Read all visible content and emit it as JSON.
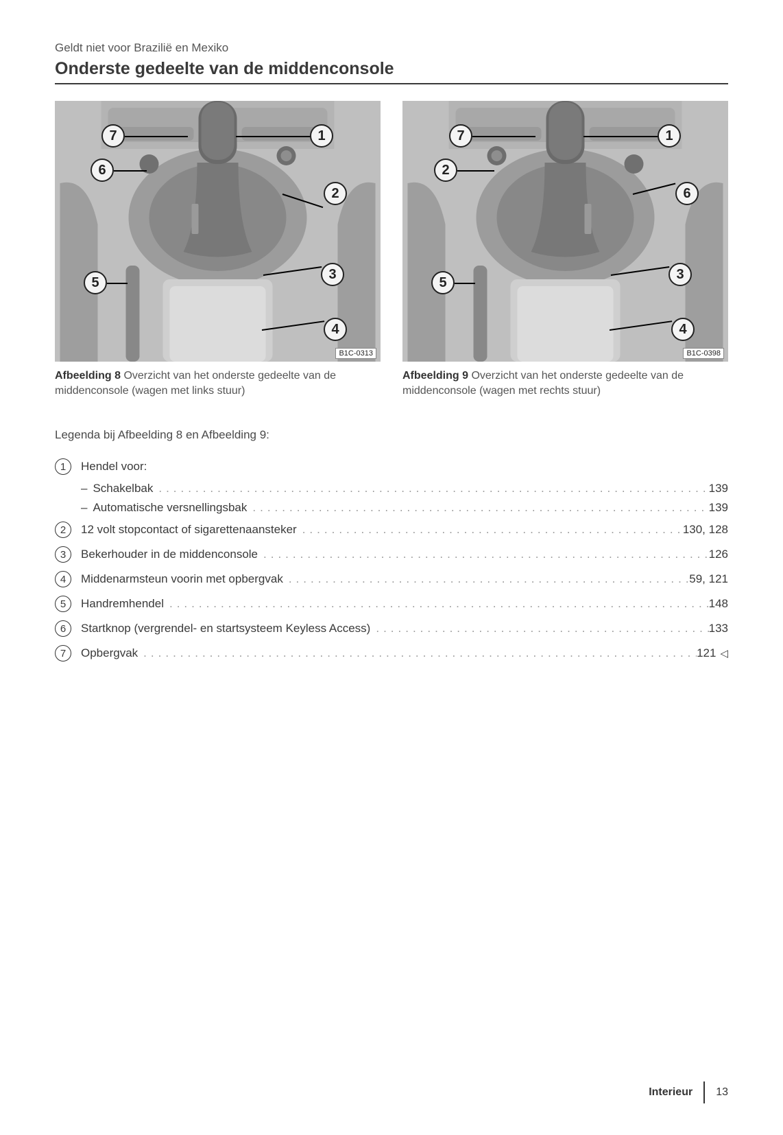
{
  "note": "Geldt niet voor Brazilië en Mexiko",
  "section_title": "Onderste gedeelte van de middenconsole",
  "figures": {
    "left": {
      "code": "B1C-0313",
      "caption_bold": "Afbeelding 8",
      "caption_rest": " Overzicht van het onderste gedeelte van de middenconsole (wagen met links stuur)",
      "callouts": [
        "7",
        "6",
        "5",
        "1",
        "2",
        "3",
        "4"
      ]
    },
    "right": {
      "code": "B1C-0398",
      "caption_bold": "Afbeelding 9",
      "caption_rest": " Overzicht van het onderste gedeelte van de middenconsole (wagen met rechts stuur)",
      "callouts": [
        "7",
        "2",
        "5",
        "1",
        "6",
        "3",
        "4"
      ]
    }
  },
  "legend_intro": "Legenda bij Afbeelding 8 en Afbeelding 9:",
  "legend": [
    {
      "num": "1",
      "text": "Hendel voor:",
      "page": "",
      "sub": [
        {
          "text": "Schakelbak",
          "page": "139"
        },
        {
          "text": "Automatische versnellingsbak",
          "page": "139"
        }
      ]
    },
    {
      "num": "2",
      "text": "12 volt stopcontact of sigarettenaansteker",
      "page": "130, 128"
    },
    {
      "num": "3",
      "text": "Bekerhouder in de middenconsole",
      "page": "126"
    },
    {
      "num": "4",
      "text": "Middenarmsteun voorin met opbergvak",
      "page": "59, 121"
    },
    {
      "num": "5",
      "text": "Handremhendel",
      "page": "148"
    },
    {
      "num": "6",
      "text": "Startknop (vergrendel- en startsysteem Keyless Access)",
      "page": "133"
    },
    {
      "num": "7",
      "text": "Opbergvak",
      "page": "121",
      "arrow": true
    }
  ],
  "footer": {
    "section": "Interieur",
    "page": "13"
  },
  "colors": {
    "text": "#4a4a4a",
    "heading": "#3a3a3a",
    "rule": "#3a3a3a",
    "callout_bg": "#f4f4f4",
    "callout_border": "#222222",
    "figure_bg": "#bfbfbf",
    "dots": "#999999"
  }
}
